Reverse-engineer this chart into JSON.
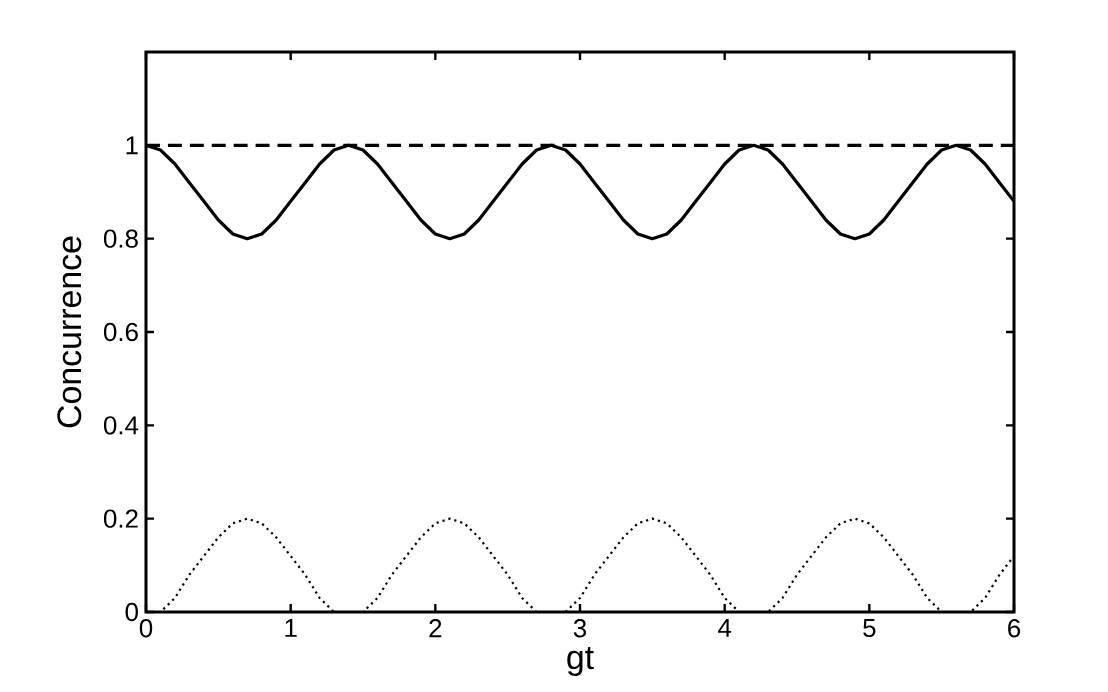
{
  "chart_data": {
    "type": "line",
    "xlabel": "gt",
    "ylabel": "Concurrence",
    "xlim": [
      0,
      6
    ],
    "ylim": [
      0,
      1.2
    ],
    "xticks": [
      0,
      1,
      2,
      3,
      4,
      5,
      6
    ],
    "yticks": [
      0,
      0.2,
      0.4,
      0.6,
      0.8,
      1
    ],
    "marker": "none",
    "x": [
      0,
      0.1,
      0.2,
      0.3,
      0.4,
      0.5,
      0.6,
      0.7,
      0.8,
      0.9,
      1.0,
      1.1,
      1.2,
      1.3,
      1.4,
      1.5,
      1.6,
      1.7,
      1.8,
      1.9,
      2.0,
      2.1,
      2.2,
      2.3,
      2.4,
      2.5,
      2.6,
      2.7,
      2.8,
      2.9,
      3.0,
      3.1,
      3.2,
      3.3,
      3.4,
      3.5,
      3.6,
      3.7,
      3.8,
      3.9,
      4.0,
      4.1,
      4.2,
      4.3,
      4.4,
      4.5,
      4.6,
      4.7,
      4.8,
      4.9,
      5.0,
      5.1,
      5.2,
      5.3,
      5.4,
      5.5,
      5.6,
      5.7,
      5.8,
      5.9,
      6.0
    ],
    "series": [
      {
        "color": "#000000",
        "line_style": "dashed",
        "x": [
          0,
          6
        ],
        "values": [
          1,
          1
        ]
      },
      {
        "color": "#000000",
        "line_style": "solid",
        "values": [
          1.0,
          0.99,
          0.96,
          0.92,
          0.88,
          0.84,
          0.81,
          0.8,
          0.81,
          0.84,
          0.88,
          0.92,
          0.96,
          0.99,
          1.0,
          0.99,
          0.96,
          0.92,
          0.88,
          0.84,
          0.81,
          0.8,
          0.81,
          0.84,
          0.88,
          0.92,
          0.96,
          0.99,
          1.0,
          0.99,
          0.96,
          0.92,
          0.88,
          0.84,
          0.81,
          0.8,
          0.81,
          0.84,
          0.88,
          0.92,
          0.96,
          0.99,
          1.0,
          0.99,
          0.96,
          0.92,
          0.88,
          0.84,
          0.81,
          0.8,
          0.81,
          0.84,
          0.88,
          0.92,
          0.96,
          0.99,
          1.0,
          0.99,
          0.96,
          0.92,
          0.88
        ]
      },
      {
        "color": "#000000",
        "line_style": "dotted",
        "values": [
          0,
          0,
          0.03,
          0.08,
          0.12,
          0.16,
          0.19,
          0.2,
          0.19,
          0.16,
          0.12,
          0.08,
          0.03,
          0,
          0,
          0,
          0.03,
          0.08,
          0.12,
          0.16,
          0.19,
          0.2,
          0.19,
          0.16,
          0.12,
          0.08,
          0.03,
          0,
          0,
          0,
          0.03,
          0.08,
          0.12,
          0.16,
          0.19,
          0.2,
          0.19,
          0.16,
          0.12,
          0.08,
          0.03,
          0,
          0,
          0,
          0.03,
          0.08,
          0.12,
          0.16,
          0.19,
          0.2,
          0.19,
          0.16,
          0.12,
          0.08,
          0.03,
          0,
          0,
          0,
          0.03,
          0.08,
          0.12
        ]
      }
    ]
  }
}
